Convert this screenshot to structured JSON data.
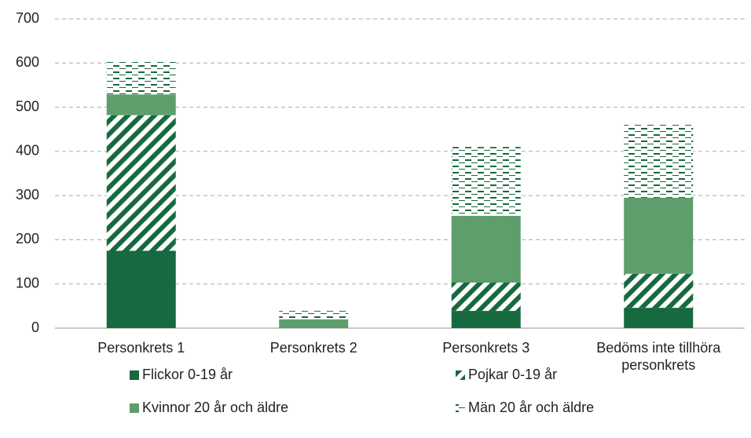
{
  "chart_data": {
    "type": "stacked_bar",
    "categories": [
      "Personkrets 1",
      "Personkrets 2",
      "Personkrets 3",
      "Bedöms inte tillhöra personkrets"
    ],
    "series": [
      {
        "name": "Flickor  0-19 år",
        "color": "#17693f",
        "pattern": "solid",
        "values": [
          175,
          0,
          39,
          46
        ]
      },
      {
        "name": "Pojkar 0-19 år",
        "color": "#17693f",
        "pattern": "diagonal",
        "values": [
          307,
          0,
          64,
          77
        ]
      },
      {
        "name": "Kvinnor 20 år och äldre",
        "color": "#5d9e6c",
        "pattern": "solid",
        "values": [
          47,
          20,
          151,
          172
        ]
      },
      {
        "name": "Män 20 år och äldre",
        "color": "#17693f",
        "pattern": "dash",
        "values": [
          76,
          19,
          156,
          167
        ]
      }
    ],
    "ylim": [
      0,
      700
    ],
    "yticks": [
      0,
      100,
      200,
      300,
      400,
      500,
      600,
      700
    ],
    "grid": true,
    "legend": "bottom"
  }
}
